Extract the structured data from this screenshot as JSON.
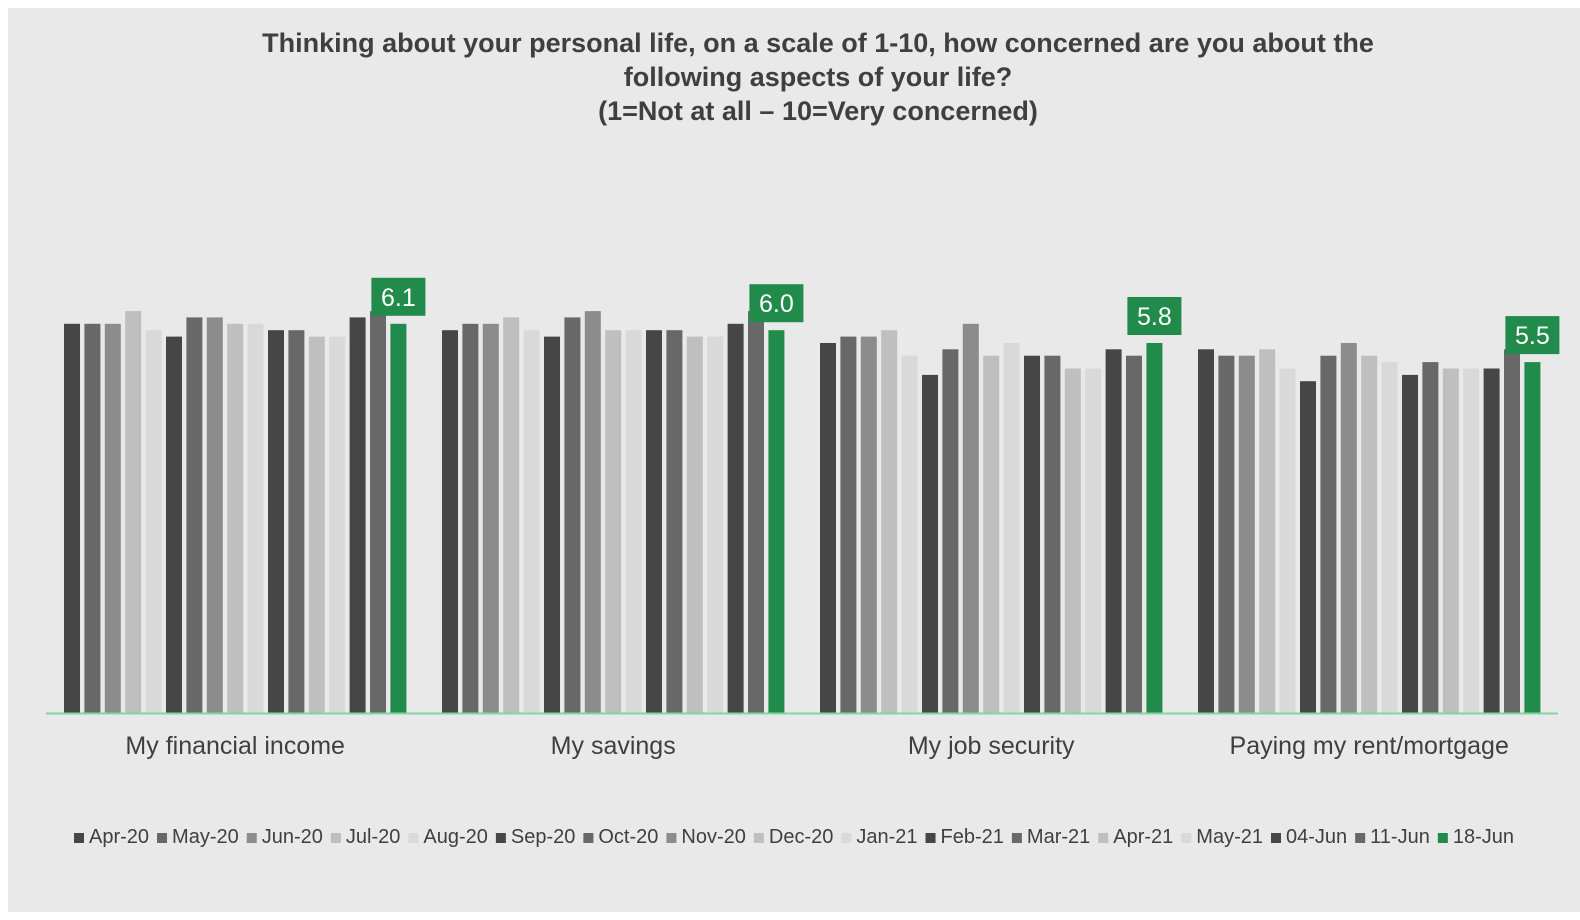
{
  "colors": {
    "background": "#e9e9e9",
    "axis_line": "#7fd6a0",
    "highlight": "#208b4a",
    "text": "#3f3f3f"
  },
  "chart_data": {
    "type": "bar",
    "title": [
      "Thinking about your personal life, on a scale of 1-10, how concerned are you about the",
      "following aspects of your life?",
      "(1=Not at all – 10=Very concerned)"
    ],
    "xlabel": "",
    "ylabel": "",
    "ylim": [
      0,
      10
    ],
    "grid": false,
    "legend_position": "bottom",
    "categories": [
      "My financial income",
      "My savings",
      "My job security",
      "Paying my rent/mortgage"
    ],
    "series": [
      {
        "name": "Apr-20",
        "color": "#464646",
        "values": [
          6.1,
          6.0,
          5.8,
          5.7
        ]
      },
      {
        "name": "May-20",
        "color": "#686868",
        "values": [
          6.1,
          6.1,
          5.9,
          5.6
        ]
      },
      {
        "name": "Jun-20",
        "color": "#8c8c8c",
        "values": [
          6.1,
          6.1,
          5.9,
          5.6
        ]
      },
      {
        "name": "Jul-20",
        "color": "#bfbfbf",
        "values": [
          6.3,
          6.2,
          6.0,
          5.7
        ]
      },
      {
        "name": "Aug-20",
        "color": "#d9d9d9",
        "values": [
          6.0,
          6.0,
          5.6,
          5.4
        ]
      },
      {
        "name": "Sep-20",
        "color": "#464646",
        "values": [
          5.9,
          5.9,
          5.3,
          5.2
        ]
      },
      {
        "name": "Oct-20",
        "color": "#686868",
        "values": [
          6.2,
          6.2,
          5.7,
          5.6
        ]
      },
      {
        "name": "Nov-20",
        "color": "#8c8c8c",
        "values": [
          6.2,
          6.3,
          6.1,
          5.8
        ]
      },
      {
        "name": "Dec-20",
        "color": "#bfbfbf",
        "values": [
          6.1,
          6.0,
          5.6,
          5.6
        ]
      },
      {
        "name": "Jan-21",
        "color": "#d9d9d9",
        "values": [
          6.1,
          6.0,
          5.8,
          5.5
        ]
      },
      {
        "name": "Feb-21",
        "color": "#464646",
        "values": [
          6.0,
          6.0,
          5.6,
          5.3
        ]
      },
      {
        "name": "Mar-21",
        "color": "#686868",
        "values": [
          6.0,
          6.0,
          5.6,
          5.5
        ]
      },
      {
        "name": "Apr-21",
        "color": "#bfbfbf",
        "values": [
          5.9,
          5.9,
          5.4,
          5.4
        ]
      },
      {
        "name": "May-21",
        "color": "#d9d9d9",
        "values": [
          5.9,
          5.9,
          5.4,
          5.4
        ]
      },
      {
        "name": "04-Jun",
        "color": "#464646",
        "values": [
          6.2,
          6.1,
          5.7,
          5.4
        ]
      },
      {
        "name": "11-Jun",
        "color": "#686868",
        "values": [
          6.3,
          6.3,
          5.6,
          5.7
        ]
      },
      {
        "name": "18-Jun",
        "color": "#208b4a",
        "values": [
          6.1,
          6.0,
          5.8,
          5.5
        ],
        "data_labels": [
          "6.1",
          "6.0",
          "5.8",
          "5.5"
        ]
      }
    ]
  }
}
